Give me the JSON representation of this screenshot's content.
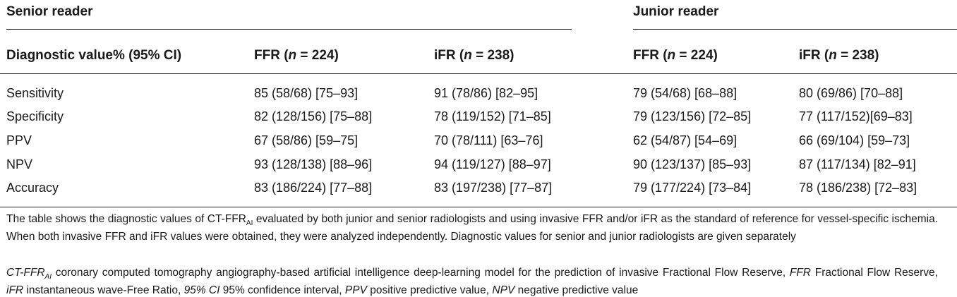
{
  "groups": {
    "senior": "Senior reader",
    "junior": "Junior reader"
  },
  "columns": {
    "label": "Diagnostic value% (95% CI)",
    "ffr_prefix": "FFR (",
    "ffr_n": "n",
    "ffr_suffix": " = 224)",
    "ifr_prefix": "iFR (",
    "ifr_n": "n",
    "ifr_suffix": " = 238)"
  },
  "rows": [
    {
      "label": "Sensitivity",
      "s_ffr": "85 (58/68) [75–93]",
      "s_ifr": "91 (78/86) [82–95]",
      "j_ffr": "79 (54/68) [68–88]",
      "j_ifr": "80 (69/86) [70–88]"
    },
    {
      "label": "Specificity",
      "s_ffr": "82 (128/156) [75–88]",
      "s_ifr": "78 (119/152) [71–85]",
      "j_ffr": "79 (123/156) [72–85]",
      "j_ifr": "77 (117/152)[69–83]"
    },
    {
      "label": "PPV",
      "s_ffr": "67 (58/86) [59–75]",
      "s_ifr": "70 (78/111) [63–76]",
      "j_ffr": "62 (54/87) [54–69]",
      "j_ifr": "66 (69/104) [59–73]"
    },
    {
      "label": "NPV",
      "s_ffr": "93 (128/138) [88–96]",
      "s_ifr": "94 (119/127) [88–97]",
      "j_ffr": "90 (123/137) [85–93]",
      "j_ifr": "87 (117/134) [82–91]"
    },
    {
      "label": "Accuracy",
      "s_ffr": "83 (186/224) [77–88]",
      "s_ifr": "83 (197/238) [77–87]",
      "j_ffr": "79 (177/224) [73–84]",
      "j_ifr": "78 (186/238) [72–83]"
    }
  ],
  "footnotes": {
    "note1_a": "The table shows the diagnostic values of CT-FFR",
    "note1_sub": "AI",
    "note1_b": " evaluated by both junior and senior radiologists and using invasive FFR and/or iFR as the standard of reference for vessel-specific ischemia. When both invasive FFR and iFR values were obtained, they were analyzed independently. Diagnostic values for senior and junior radiologists are given separately",
    "abbr": [
      {
        "term": "CT-FFR",
        "sub": "AI",
        "def": " coronary computed tomography angiography-based artificial intelligence deep-learning model for the prediction of invasive Fractional Flow Reserve, "
      },
      {
        "term": "FFR",
        "sub": "",
        "def": " Fractional Flow Reserve, "
      },
      {
        "term": "iFR",
        "sub": "",
        "def": " instantaneous wave-Free Ratio, "
      },
      {
        "term": "95% CI",
        "sub": "",
        "def": " 95% confidence interval, "
      },
      {
        "term": "PPV",
        "sub": "",
        "def": " positive predictive value, "
      },
      {
        "term": "NPV",
        "sub": "",
        "def": " negative predictive value"
      }
    ]
  }
}
